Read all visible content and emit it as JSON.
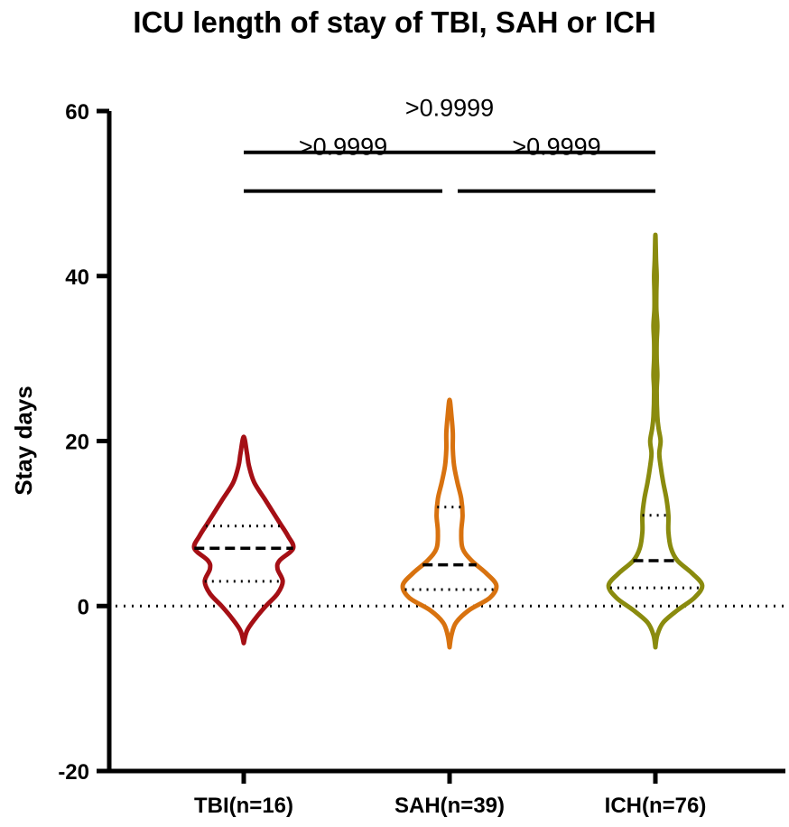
{
  "chart_data": {
    "type": "violin",
    "title": "ICU length of stay of TBI, SAH or ICH",
    "xlabel": "",
    "ylabel": "Stay days",
    "ylim": [
      -20,
      60
    ],
    "yticks": [
      -20,
      0,
      20,
      40,
      60
    ],
    "reference_line_y": 0,
    "categories": [
      "TBI(n=16)",
      "SAH(n=39)",
      "ICH(n=76)"
    ],
    "series": [
      {
        "category": "TBI(n=16)",
        "color": "#A50F15",
        "median": 7,
        "q1": 3,
        "q3": 9.7,
        "min": -4.5,
        "max": 20.5,
        "density": [
          [
            -4.5,
            0
          ],
          [
            -3,
            0.05
          ],
          [
            -1.5,
            0.18
          ],
          [
            0,
            0.34
          ],
          [
            1.5,
            0.52
          ],
          [
            3,
            0.6
          ],
          [
            4.5,
            0.52
          ],
          [
            5.5,
            0.55
          ],
          [
            7,
            0.76
          ],
          [
            8.5,
            0.68
          ],
          [
            10,
            0.56
          ],
          [
            11.5,
            0.44
          ],
          [
            13,
            0.32
          ],
          [
            15,
            0.16
          ],
          [
            17,
            0.08
          ],
          [
            18.5,
            0.05
          ],
          [
            20.5,
            0
          ]
        ]
      },
      {
        "category": "SAH(n=39)",
        "color": "#D8720F",
        "median": 5,
        "q1": 2,
        "q3": 12,
        "min": -5,
        "max": 25,
        "density": [
          [
            -5,
            0
          ],
          [
            -3.5,
            0.03
          ],
          [
            -2,
            0.1
          ],
          [
            -0.5,
            0.3
          ],
          [
            1,
            0.62
          ],
          [
            2.5,
            0.72
          ],
          [
            4,
            0.56
          ],
          [
            5.5,
            0.34
          ],
          [
            7,
            0.2
          ],
          [
            9,
            0.18
          ],
          [
            11,
            0.2
          ],
          [
            13,
            0.18
          ],
          [
            15,
            0.12
          ],
          [
            17,
            0.07
          ],
          [
            19,
            0.05
          ],
          [
            21,
            0.05
          ],
          [
            23,
            0.03
          ],
          [
            25,
            0
          ]
        ]
      },
      {
        "category": "ICH(n=76)",
        "color": "#8A8B0E",
        "median": 5.5,
        "q1": 2.2,
        "q3": 11,
        "min": -5,
        "max": 45,
        "density": [
          [
            -5,
            0
          ],
          [
            -3.5,
            0.03
          ],
          [
            -2,
            0.12
          ],
          [
            -0.5,
            0.34
          ],
          [
            1,
            0.6
          ],
          [
            2.5,
            0.72
          ],
          [
            4,
            0.56
          ],
          [
            5.5,
            0.34
          ],
          [
            7,
            0.24
          ],
          [
            9,
            0.2
          ],
          [
            11,
            0.2
          ],
          [
            13,
            0.17
          ],
          [
            15,
            0.12
          ],
          [
            17,
            0.08
          ],
          [
            18.5,
            0.06
          ],
          [
            20,
            0.08
          ],
          [
            21.5,
            0.05
          ],
          [
            23,
            0.03
          ],
          [
            26,
            0.02
          ],
          [
            28,
            0.03
          ],
          [
            30,
            0.02
          ],
          [
            32,
            0.02
          ],
          [
            34,
            0.03
          ],
          [
            36,
            0.015
          ],
          [
            38,
            0.015
          ],
          [
            40,
            0.02
          ],
          [
            42,
            0.01
          ],
          [
            45,
            0
          ]
        ]
      }
    ],
    "comparisons": [
      {
        "from": 0,
        "to": 2,
        "label": ">0.9999"
      },
      {
        "from": 0,
        "to": 1,
        "label": ">0.9999"
      },
      {
        "from": 1,
        "to": 2,
        "label": ">0.9999"
      }
    ]
  }
}
